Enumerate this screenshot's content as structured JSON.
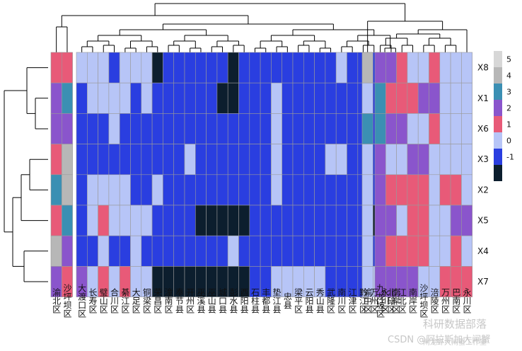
{
  "chart_data": {
    "type": "heatmap",
    "title": "",
    "row_labels": [
      "X8",
      "X1",
      "X6",
      "X3",
      "X2",
      "X5",
      "X4",
      "X7"
    ],
    "blocks": [
      {
        "columns": [
          "渝北区",
          "沙坪坝区"
        ],
        "values": [
          [
            1,
            1
          ],
          [
            2,
            3
          ],
          [
            2,
            2
          ],
          [
            1,
            4
          ],
          [
            3,
            4
          ],
          [
            1,
            3
          ],
          [
            4,
            2
          ],
          [
            2,
            1
          ]
        ]
      },
      {
        "columns": [
          "大渡口区",
          "长寿区",
          "璧山区",
          "合川区",
          "綦江区",
          "大足区",
          "铜梁区",
          "荣昌区",
          "潼南区",
          "奉节县",
          "开州区",
          "巫溪县",
          "巫山县",
          "城口县",
          "彭水县",
          "酉阳县",
          "石柱县",
          "丰都县",
          "垫江县",
          "忠县",
          "梁平区",
          "云阳县",
          "秀山县",
          "武隆区",
          "南川区",
          "江津区",
          "黔江区",
          "万州区",
          "永川区",
          "南岸区"
        ],
        "values": [
          [
            0,
            0,
            0,
            -1,
            0,
            0,
            0,
            -2,
            -1,
            -1,
            -1,
            -1,
            -1,
            -1,
            -2,
            -1,
            -1,
            -1,
            -1,
            -1,
            -1,
            -1,
            -1,
            -1,
            0,
            -1,
            -1,
            -1,
            -1,
            0
          ],
          [
            -1,
            0,
            0,
            0,
            0,
            -1,
            0,
            -1,
            -1,
            -1,
            -1,
            -1,
            -1,
            -2,
            -2,
            -1,
            -1,
            -1,
            0,
            -1,
            -1,
            -1,
            -1,
            -1,
            -1,
            -1,
            -1,
            -1,
            -1,
            -1
          ],
          [
            -1,
            -1,
            -1,
            0,
            -1,
            -1,
            -1,
            -1,
            -1,
            -1,
            -1,
            -1,
            -1,
            -1,
            -1,
            -1,
            -1,
            -1,
            0,
            -1,
            -1,
            -1,
            -1,
            -1,
            -1,
            -1,
            -1,
            -1,
            -1,
            -1
          ],
          [
            -1,
            -1,
            -1,
            -1,
            -1,
            -1,
            -1,
            -1,
            -1,
            -1,
            0,
            -1,
            -1,
            -1,
            -1,
            -1,
            -1,
            -1,
            0,
            -1,
            -1,
            -1,
            -1,
            0,
            0,
            -1,
            -1,
            -1,
            -1,
            -1
          ],
          [
            -1,
            0,
            0,
            0,
            0,
            -1,
            -1,
            0,
            -1,
            -1,
            -1,
            -1,
            -1,
            -1,
            -1,
            -1,
            -1,
            -1,
            0,
            -1,
            -1,
            -1,
            -1,
            -1,
            -1,
            -1,
            -1,
            -1,
            -1,
            -1
          ],
          [
            -1,
            0,
            1,
            0,
            0,
            0,
            0,
            -1,
            -1,
            -1,
            -1,
            -2,
            -2,
            -2,
            -2,
            -2,
            -1,
            -1,
            -1,
            -1,
            -1,
            -1,
            -1,
            -1,
            -1,
            -1,
            -1,
            -2,
            0,
            -1
          ],
          [
            -1,
            -1,
            0,
            -1,
            -1,
            0,
            -1,
            -1,
            -1,
            -1,
            -1,
            -1,
            -1,
            -1,
            0,
            -1,
            -1,
            -1,
            -1,
            -1,
            -1,
            -1,
            -1,
            -1,
            -1,
            -1,
            -1,
            -1,
            -1,
            -1
          ],
          [
            2,
            0,
            1,
            0,
            1,
            0,
            0,
            -2,
            -2,
            -2,
            -2,
            -2,
            -2,
            -2,
            -2,
            -2,
            -1,
            -1,
            0,
            0,
            0,
            0,
            0,
            -1,
            -1,
            -1,
            -1,
            0,
            0,
            -1
          ]
        ]
      },
      {
        "columns": [
          "渝中区"
        ],
        "values": [
          [
            4
          ],
          [
            0
          ],
          [
            3
          ],
          [
            0
          ],
          [
            0
          ],
          [
            0
          ],
          [
            0
          ],
          [
            0
          ]
        ]
      },
      {
        "columns": [
          "九龙坡区",
          "北碚区",
          "江北区",
          "南岸区",
          "沙坪坝区",
          "涪陵区",
          "万州区",
          "巴南区",
          "永川区"
        ],
        "values": [
          [
            2,
            2,
            1,
            0,
            0,
            1,
            0,
            0,
            0
          ],
          [
            3,
            1,
            1,
            1,
            2,
            2,
            0,
            0,
            0
          ],
          [
            3,
            2,
            2,
            0,
            0,
            1,
            0,
            0,
            0
          ],
          [
            2,
            0,
            0,
            2,
            2,
            0,
            0,
            0,
            0
          ],
          [
            2,
            1,
            1,
            1,
            1,
            0,
            1,
            1,
            0
          ],
          [
            2,
            2,
            0,
            1,
            1,
            0,
            0,
            2,
            2
          ],
          [
            2,
            1,
            1,
            1,
            1,
            0,
            0,
            1,
            0
          ],
          [
            2,
            2,
            2,
            2,
            0,
            0,
            1,
            1,
            1
          ]
        ]
      }
    ],
    "legend": {
      "position": "right",
      "ticks": [
        "5",
        "4",
        "3",
        "2",
        "1",
        "0",
        "-1"
      ],
      "colors": [
        {
          "value": 5,
          "color": "#d7d7d7"
        },
        {
          "value": 4,
          "color": "#b7b7b7"
        },
        {
          "value": 3,
          "color": "#3b8fb3"
        },
        {
          "value": 2,
          "color": "#8a55cc"
        },
        {
          "value": 1,
          "color": "#e85a78"
        },
        {
          "value": 0,
          "color": "#b7c5f7"
        },
        {
          "value": -1,
          "color": "#2a3ee0"
        },
        {
          "value": -2,
          "color": "#0c1e2e"
        }
      ]
    },
    "row_dendrogram": "left",
    "column_dendrogram": "top",
    "grid": true
  },
  "watermark": {
    "line1": "科研数据部落",
    "line2": "CSDN @阿拉斯加大闸蟹",
    "brand": "闸龙虾大闸蟹工作室"
  }
}
